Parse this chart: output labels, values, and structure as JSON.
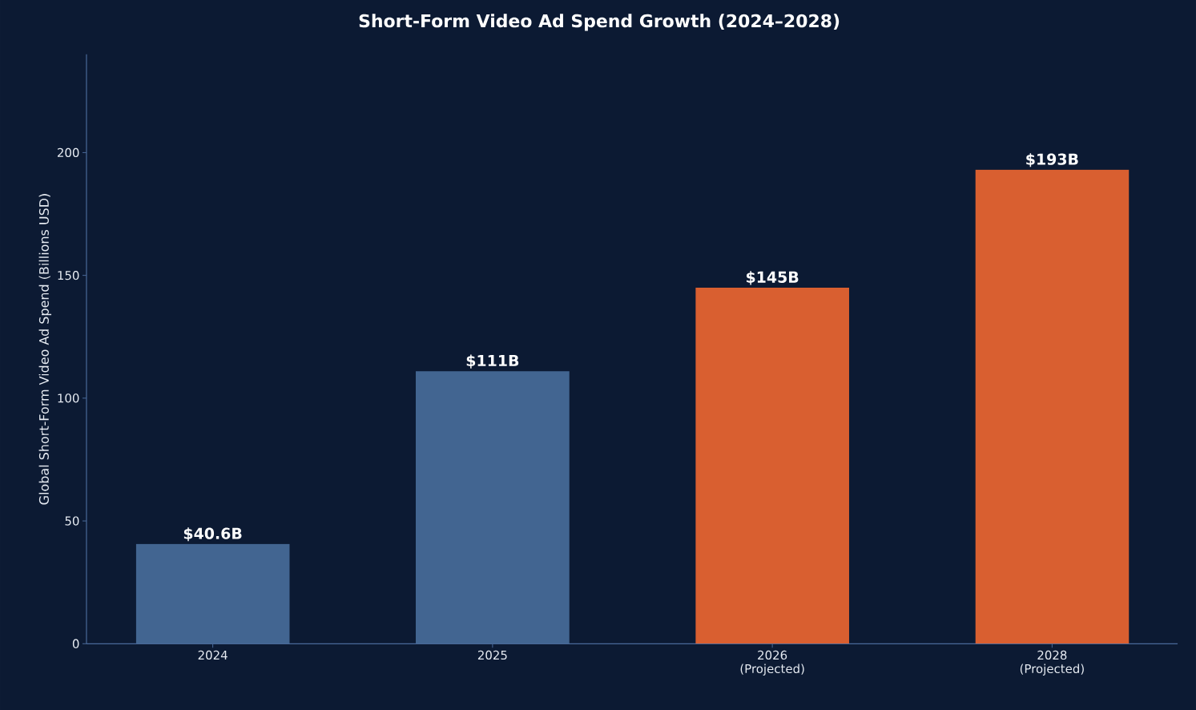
{
  "chart_data": {
    "type": "bar",
    "title": "Short-Form Video Ad Spend Growth (2024–2028)",
    "ylabel": "Global Short-Form Video Ad Spend (Billions USD)",
    "categories": [
      "2024",
      "2025",
      "2026 (Projected)",
      "2028 (Projected)"
    ],
    "values": [
      40.6,
      111,
      145,
      193
    ],
    "value_labels": [
      "$40.6B",
      "$111B",
      "$145B",
      "$193B"
    ],
    "colors": [
      "#426591",
      "#426591",
      "#d95f30",
      "#d95f30"
    ],
    "ylim": [
      0,
      240
    ],
    "yticks": [
      0,
      50,
      100,
      150,
      200
    ],
    "grid": false
  }
}
